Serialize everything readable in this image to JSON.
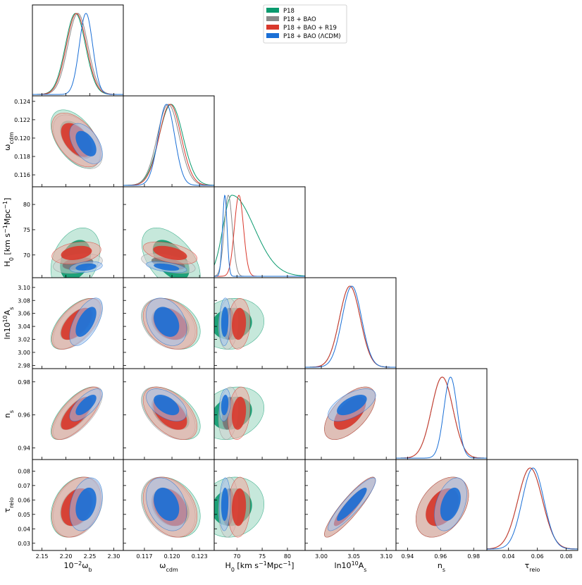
{
  "chart_data": {
    "type": "corner",
    "legend": {
      "placement": "top-center",
      "entries": [
        {
          "label": "P18",
          "color": "#0a9a6e"
        },
        {
          "label": "P18 + BAO",
          "color": "#8a8a8a"
        },
        {
          "label": "P18 + BAO + R19",
          "color": "#d9382c"
        },
        {
          "label": "P18 + BAO (ΛCDM)",
          "color": "#1a6fd6"
        }
      ]
    },
    "parameters": [
      {
        "key": "omega_b",
        "label": "10⁻²ω_b",
        "label_html": "10<tspan baseline-shift='super' font-size='8'>−2</tspan>ω<tspan baseline-shift='sub' font-size='8'>b</tspan>",
        "range": [
          2.13,
          2.32
        ],
        "ticks": [
          "2.15",
          "2.20",
          "2.25",
          "2.30"
        ],
        "tick_values": [
          2.15,
          2.2,
          2.25,
          2.3
        ]
      },
      {
        "key": "omega_cdm",
        "label": "ω_cdm",
        "label_html": "ω<tspan baseline-shift='sub' font-size='8'>cdm</tspan>",
        "range": [
          0.1147,
          0.1246
        ],
        "ticks": [
          "0.117",
          "0.120",
          "0.123"
        ],
        "tick_values": [
          0.117,
          0.12,
          0.123
        ],
        "ticks_y": [
          "0.116",
          "0.118",
          "0.120",
          "0.122",
          "0.124"
        ],
        "tick_values_y": [
          0.116,
          0.118,
          0.12,
          0.122,
          0.124
        ]
      },
      {
        "key": "H0",
        "label": "H_0 [km s⁻¹Mpc⁻¹]",
        "label_html": "H<tspan baseline-shift='sub' font-size='8'>0</tspan> [km s<tspan baseline-shift='super' font-size='8'>−1</tspan>Mpc<tspan baseline-shift='super' font-size='8'>−1</tspan>]",
        "range": [
          65.5,
          83.5
        ],
        "ticks": [
          "70",
          "75",
          "80"
        ],
        "tick_values": [
          70,
          75,
          80
        ]
      },
      {
        "key": "lnAs",
        "label": "ln10¹⁰A_s",
        "label_html": "ln10<tspan baseline-shift='super' font-size='8'>10</tspan>A<tspan baseline-shift='sub' font-size='8'>s</tspan>",
        "range": [
          2.975,
          3.115
        ],
        "ticks": [
          "3.00",
          "3.05",
          "3.10"
        ],
        "tick_values": [
          3.0,
          3.05,
          3.1
        ],
        "ticks_y": [
          "2.98",
          "3.00",
          "3.02",
          "3.04",
          "3.06",
          "3.08",
          "3.10"
        ],
        "tick_values_y": [
          2.98,
          3.0,
          3.02,
          3.04,
          3.06,
          3.08,
          3.1
        ]
      },
      {
        "key": "ns",
        "label": "n_s",
        "label_html": "n<tspan baseline-shift='sub' font-size='8'>s</tspan>",
        "range": [
          0.933,
          0.988
        ],
        "ticks": [
          "0.94",
          "0.96",
          "0.98"
        ],
        "tick_values": [
          0.94,
          0.96,
          0.98
        ]
      },
      {
        "key": "tau_reio",
        "label": "τ_reio",
        "label_html": "τ<tspan baseline-shift='sub' font-size='8'>reio</tspan>",
        "range": [
          0.025,
          0.088
        ],
        "ticks": [
          "0.04",
          "0.06",
          "0.08"
        ],
        "tick_values": [
          0.04,
          0.06,
          0.08
        ],
        "ticks_y": [
          "0.03",
          "0.04",
          "0.05",
          "0.06",
          "0.07",
          "0.08"
        ],
        "tick_values_y": [
          0.03,
          0.04,
          0.05,
          0.06,
          0.07,
          0.08
        ]
      }
    ],
    "series": [
      {
        "name": "P18",
        "color": "#0a9a6e",
        "fill68": "#0a9a6e",
        "fill95": "#97d6bd",
        "mean": {
          "omega_b": 2.22,
          "omega_cdm": 0.1199,
          "H0": 69.0,
          "lnAs": 3.044,
          "ns": 0.961,
          "tau_reio": 0.055
        },
        "sigma": {
          "omega_b": 0.021,
          "omega_cdm": 0.0013,
          "H0": 2.6,
          "lnAs": 0.016,
          "ns": 0.0065,
          "tau_reio": 0.0085
        }
      },
      {
        "name": "P18 + BAO",
        "color": "#8a8a8a",
        "fill68": "#767676",
        "fill95": "#cfcfcf",
        "mean": {
          "omega_b": 2.225,
          "omega_cdm": 0.1196,
          "H0": 68.3,
          "lnAs": 3.044,
          "ns": 0.961,
          "tau_reio": 0.055
        },
        "sigma": {
          "omega_b": 0.021,
          "omega_cdm": 0.0012,
          "H0": 0.8,
          "lnAs": 0.016,
          "ns": 0.0065,
          "tau_reio": 0.0085
        }
      },
      {
        "name": "P18 + BAO + R19",
        "color": "#d9382c",
        "fill68": "#d9382c",
        "fill95": "#f0a79e",
        "mean": {
          "omega_b": 2.222,
          "omega_cdm": 0.1198,
          "H0": 70.4,
          "lnAs": 3.044,
          "ns": 0.961,
          "tau_reio": 0.055
        },
        "sigma": {
          "omega_b": 0.021,
          "omega_cdm": 0.0012,
          "H0": 0.9,
          "lnAs": 0.016,
          "ns": 0.0065,
          "tau_reio": 0.0085
        }
      },
      {
        "name": "P18 + BAO (ΛCDM)",
        "color": "#1a6fd6",
        "fill68": "#1a6fd6",
        "fill95": "#a2c2ec",
        "mean": {
          "omega_b": 2.242,
          "omega_cdm": 0.1194,
          "H0": 67.6,
          "lnAs": 3.047,
          "ns": 0.966,
          "tau_reio": 0.057
        },
        "sigma": {
          "omega_b": 0.014,
          "omega_cdm": 0.0009,
          "H0": 0.45,
          "lnAs": 0.015,
          "ns": 0.004,
          "tau_reio": 0.0075
        }
      }
    ],
    "correlations": {
      "omega_b|omega_cdm": -0.5,
      "omega_b|H0": 0.3,
      "omega_b|lnAs": 0.6,
      "omega_b|ns": 0.7,
      "omega_b|tau_reio": 0.3,
      "omega_cdm|H0": -0.5,
      "omega_cdm|lnAs": -0.3,
      "omega_cdm|ns": -0.5,
      "omega_cdm|tau_reio": -0.3,
      "H0|lnAs": 0.1,
      "H0|ns": 0.2,
      "H0|tau_reio": 0.1,
      "lnAs|ns": 0.6,
      "lnAs|tau_reio": 0.9,
      "ns|tau_reio": 0.4
    }
  }
}
